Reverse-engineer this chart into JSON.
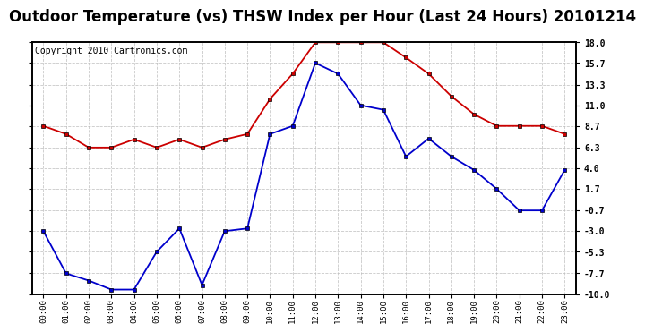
{
  "title": "Outdoor Temperature (vs) THSW Index per Hour (Last 24 Hours) 20101214",
  "copyright": "Copyright 2010 Cartronics.com",
  "hours": [
    "00:00",
    "01:00",
    "02:00",
    "03:00",
    "04:00",
    "05:00",
    "06:00",
    "07:00",
    "08:00",
    "09:00",
    "10:00",
    "11:00",
    "12:00",
    "13:00",
    "14:00",
    "15:00",
    "16:00",
    "17:00",
    "18:00",
    "19:00",
    "20:00",
    "21:00",
    "22:00",
    "23:00"
  ],
  "red_data": [
    8.7,
    7.8,
    6.3,
    6.3,
    7.2,
    6.3,
    7.2,
    6.3,
    7.2,
    7.8,
    11.7,
    14.5,
    18.0,
    18.0,
    18.0,
    18.0,
    16.3,
    14.5,
    12.0,
    10.0,
    8.7,
    8.7,
    8.7,
    7.8
  ],
  "blue_data": [
    -3.0,
    -7.7,
    -8.5,
    -9.5,
    -9.5,
    -5.3,
    -2.7,
    -9.0,
    -3.0,
    -2.7,
    7.8,
    8.7,
    15.7,
    14.5,
    11.0,
    10.5,
    5.3,
    7.3,
    5.3,
    3.8,
    1.7,
    -0.7,
    -0.7,
    3.8
  ],
  "ylim": [
    -10.0,
    18.0
  ],
  "yticks": [
    -10.0,
    -7.7,
    -5.3,
    -3.0,
    -0.7,
    1.7,
    4.0,
    6.3,
    8.7,
    11.0,
    13.3,
    15.7,
    18.0
  ],
  "red_color": "#cc0000",
  "blue_color": "#0000cc",
  "bg_color": "#ffffff",
  "grid_color": "#bbbbbb",
  "title_color": "#000000",
  "title_fontsize": 12,
  "copyright_fontsize": 7
}
